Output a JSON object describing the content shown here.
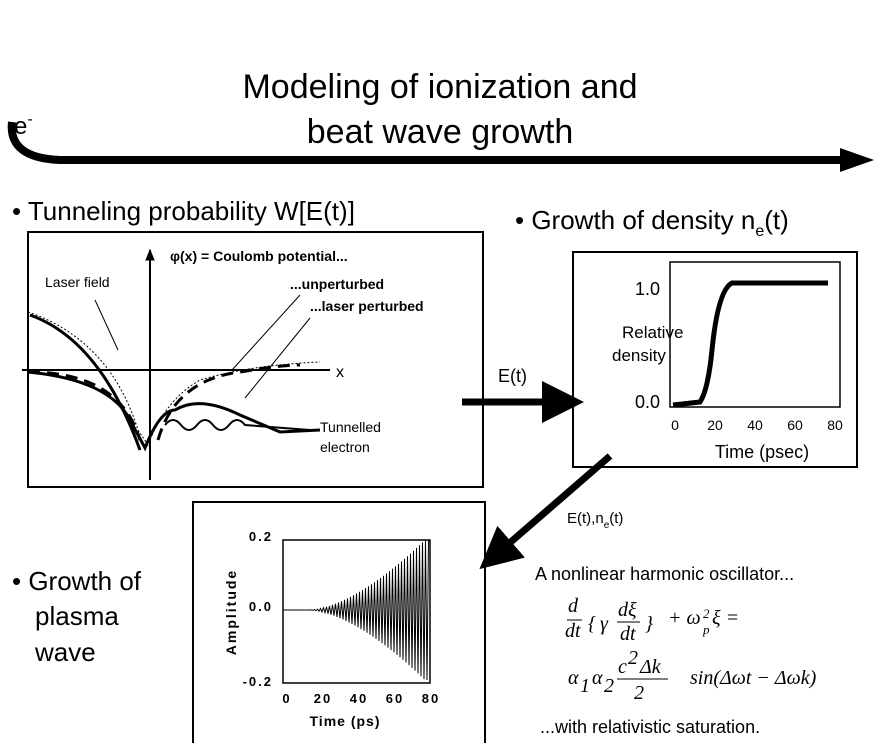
{
  "header": {
    "title_line1": "Modeling of ionization and",
    "title_line2": "beat wave growth",
    "electron": "e",
    "electron_sup": "-"
  },
  "tunneling": {
    "heading": "• Tunneling probability W[E(t)]",
    "potential_label": "φ(x) = Coulomb potential...",
    "laser_field": "Laser field",
    "unperturbed": "...unperturbed",
    "perturbed": "...laser perturbed",
    "x_label": "x",
    "tunnelled_line1": "Tunnelled",
    "tunnelled_line2": "electron"
  },
  "density": {
    "heading": "• Growth of density n",
    "heading_sub": "e",
    "heading_suffix": "(t)",
    "ylabel_line1": "Relative",
    "ylabel_line2": "density",
    "yticks": [
      "1.0",
      "0.0"
    ],
    "xticks": [
      "0",
      "20",
      "40",
      "60",
      "80"
    ],
    "xlabel": "Time (psec)"
  },
  "arrows": {
    "field": "E(t)",
    "field_density": "E(t),n",
    "field_density_sub": "e",
    "field_density_suffix": "(t)"
  },
  "plasma": {
    "heading_line1": "• Growth of",
    "heading_line2": "plasma",
    "heading_line3": "wave",
    "ylabel": "Amplitude",
    "yticks": [
      "0.2",
      "0.0",
      "-0.2"
    ],
    "xticks": [
      "0",
      "20",
      "40",
      "60",
      "80"
    ],
    "xlabel": "Time  (ps)"
  },
  "oscillator": {
    "intro": "A nonlinear harmonic oscillator...",
    "eq1": [
      "d",
      "dt",
      "{",
      "γ",
      "dξ",
      "dt",
      "}",
      "+ ω",
      "2",
      "p",
      "ξ ="
    ],
    "eq2": [
      "α",
      "1",
      "α",
      "2",
      "c",
      "2",
      "Δk",
      "2",
      "sin(Δωt − Δωk)"
    ],
    "outro": "...with relativistic saturation."
  }
}
